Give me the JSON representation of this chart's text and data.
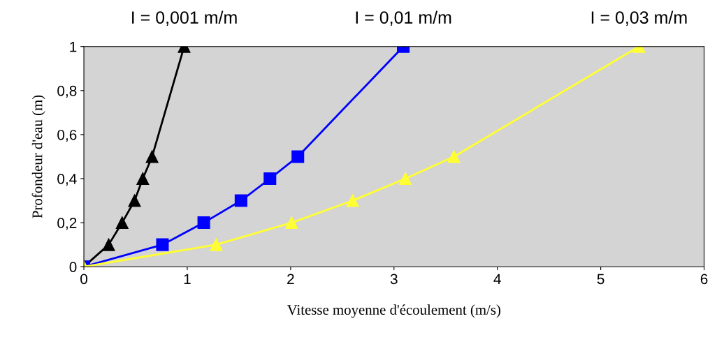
{
  "chart_data": {
    "type": "line",
    "xlabel": "Vitesse moyenne d'écoulement (m/s)",
    "ylabel": "Profondeur d'eau (m)",
    "xlim": [
      0,
      6
    ],
    "ylim": [
      0,
      1
    ],
    "xticks": [
      0,
      1,
      2,
      3,
      4,
      5,
      6
    ],
    "yticks": [
      0,
      {
        "value": 0.2,
        "label": "0,2"
      },
      {
        "value": 0.4,
        "label": "0,4"
      },
      {
        "value": 0.6,
        "label": "0,6"
      },
      {
        "value": 0.8,
        "label": "0,8"
      },
      1
    ],
    "grid": false,
    "legend": false,
    "series": [
      {
        "name": "I = 0,001 m/m",
        "color": "#000000",
        "marker": "triangle",
        "x": [
          0,
          0.24,
          0.37,
          0.49,
          0.57,
          0.66,
          0.97
        ],
        "values": [
          0,
          0.1,
          0.2,
          0.3,
          0.4,
          0.5,
          1
        ]
      },
      {
        "name": "I = 0,01 m/m",
        "color": "#0000ff",
        "marker": "square",
        "x": [
          0,
          0.76,
          1.16,
          1.52,
          1.8,
          2.07,
          3.09
        ],
        "values": [
          0,
          0.1,
          0.2,
          0.3,
          0.4,
          0.5,
          1
        ]
      },
      {
        "name": "I = 0,03 m/m",
        "color": "#ffff33",
        "marker": "triangle",
        "x": [
          0,
          1.28,
          2.01,
          2.6,
          3.11,
          3.58,
          5.37
        ],
        "values": [
          0,
          0.1,
          0.2,
          0.3,
          0.4,
          0.5,
          1
        ]
      }
    ]
  }
}
